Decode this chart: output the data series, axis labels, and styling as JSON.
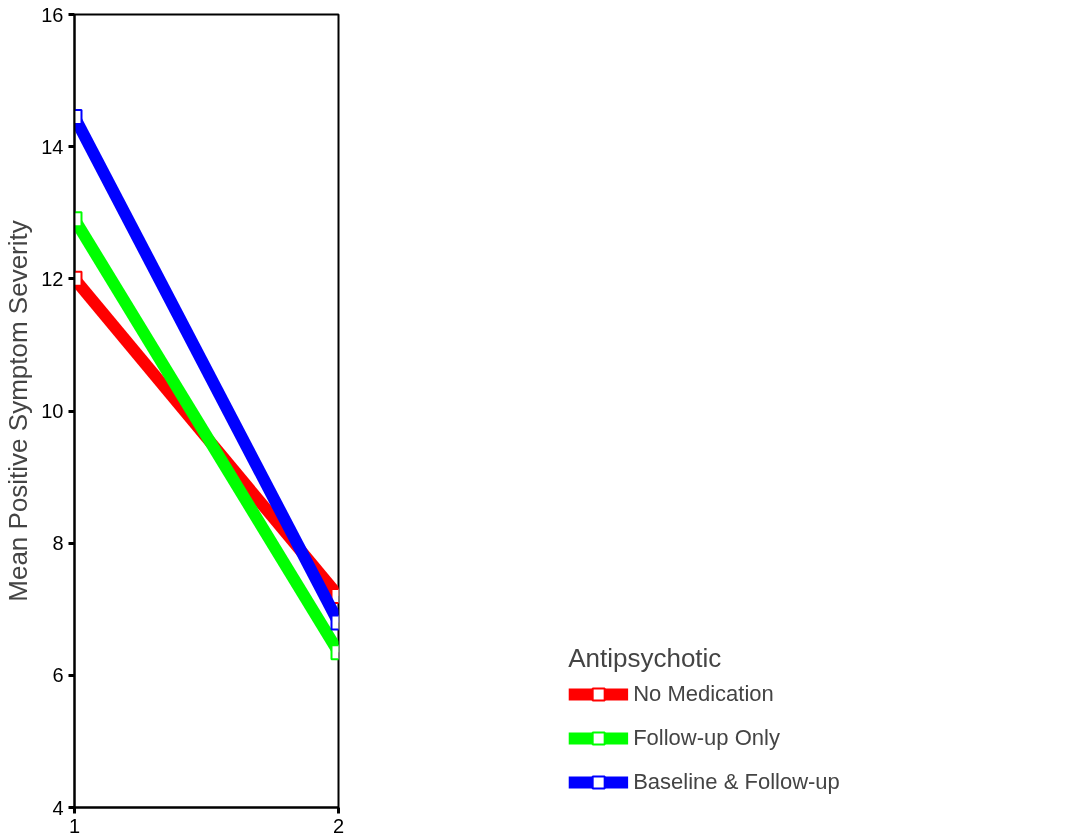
{
  "chart_data": {
    "type": "line",
    "ylabel": "Mean Positive Symptom Severity",
    "legend_title": "Antipsychotic",
    "x": [
      1,
      2
    ],
    "xlim": [
      1,
      2
    ],
    "xticks": [
      1,
      2
    ],
    "ylim": [
      4,
      16
    ],
    "yticks": [
      4,
      6,
      8,
      10,
      12,
      14,
      16
    ],
    "series": [
      {
        "name": "No Medication",
        "color": "#ff0000",
        "values": [
          12.0,
          7.2
        ]
      },
      {
        "name": "Follow-up Only",
        "color": "#00ff00",
        "values": [
          12.9,
          6.35
        ]
      },
      {
        "name": "Baseline & Follow-up",
        "color": "#0000ff",
        "values": [
          14.45,
          6.8
        ]
      }
    ],
    "marker": "square",
    "grid": false,
    "legend": "bottom right"
  }
}
